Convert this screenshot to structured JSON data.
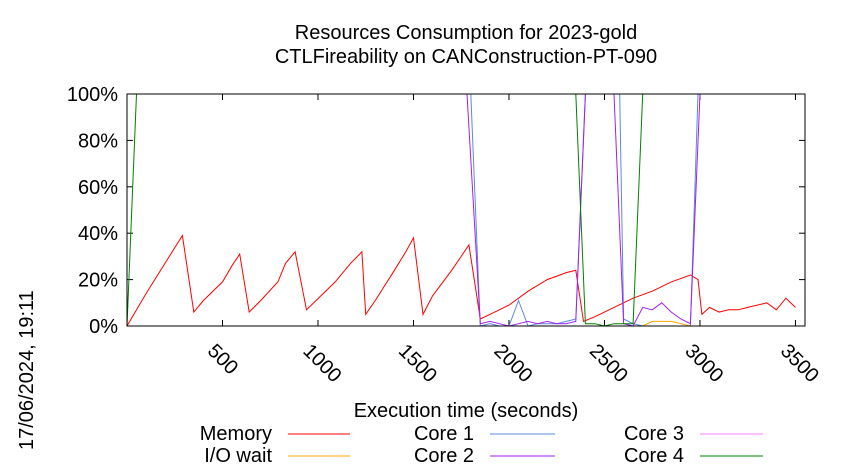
{
  "stamp": "17/06/2024, 19:11",
  "chart_data": {
    "type": "line",
    "title": [
      "Resources Consumption for 2023-gold",
      "CTLFireability on CANConstruction-PT-090"
    ],
    "xlabel": "Execution time (seconds)",
    "ylabel": "",
    "xlim": [
      0,
      3550
    ],
    "ylim": [
      0,
      100
    ],
    "xticks": [
      500,
      1000,
      1500,
      2000,
      2500,
      3000,
      3500
    ],
    "xtick_labels": [
      "500",
      "1000",
      "1500",
      "2000",
      "2500",
      "3000",
      "3500"
    ],
    "yticks": [
      0,
      20,
      40,
      60,
      80,
      100
    ],
    "ytick_labels": [
      "0%",
      "20%",
      "40%",
      "60%",
      "80%",
      "100%"
    ],
    "grid": false,
    "legend_position": "bottom",
    "series": [
      {
        "name": "Memory",
        "color": "#ff0000",
        "points": [
          [
            0,
            0
          ],
          [
            100,
            14
          ],
          [
            290,
            39
          ],
          [
            350,
            6
          ],
          [
            400,
            11
          ],
          [
            500,
            19
          ],
          [
            550,
            26
          ],
          [
            590,
            31
          ],
          [
            640,
            6
          ],
          [
            700,
            11
          ],
          [
            790,
            19
          ],
          [
            830,
            27
          ],
          [
            880,
            32
          ],
          [
            940,
            7
          ],
          [
            990,
            11
          ],
          [
            1090,
            19
          ],
          [
            1170,
            27
          ],
          [
            1230,
            32
          ],
          [
            1250,
            5
          ],
          [
            1300,
            11
          ],
          [
            1400,
            24
          ],
          [
            1460,
            32
          ],
          [
            1500,
            38
          ],
          [
            1550,
            5
          ],
          [
            1600,
            13
          ],
          [
            1700,
            24
          ],
          [
            1750,
            30
          ],
          [
            1790,
            35
          ],
          [
            1850,
            3
          ],
          [
            1900,
            5
          ],
          [
            2000,
            9
          ],
          [
            2100,
            15
          ],
          [
            2200,
            20
          ],
          [
            2300,
            23
          ],
          [
            2350,
            24
          ],
          [
            2390,
            2
          ],
          [
            2450,
            4
          ],
          [
            2550,
            8
          ],
          [
            2650,
            12
          ],
          [
            2750,
            15
          ],
          [
            2850,
            19
          ],
          [
            2950,
            22
          ],
          [
            2990,
            20
          ],
          [
            3010,
            5
          ],
          [
            3050,
            8
          ],
          [
            3100,
            6
          ],
          [
            3150,
            7
          ],
          [
            3200,
            7
          ],
          [
            3250,
            8
          ],
          [
            3300,
            9
          ],
          [
            3350,
            10
          ],
          [
            3400,
            7
          ],
          [
            3450,
            12
          ],
          [
            3500,
            8
          ]
        ]
      },
      {
        "name": "I/O wait",
        "color": "#ffa500",
        "points": [
          [
            0,
            0
          ],
          [
            1800,
            0
          ],
          [
            2400,
            0
          ],
          [
            2700,
            0
          ],
          [
            2750,
            2
          ],
          [
            2800,
            2
          ],
          [
            2850,
            2
          ],
          [
            2900,
            1
          ],
          [
            2950,
            0
          ],
          [
            3000,
            0
          ]
        ]
      },
      {
        "name": "Core 1",
        "color": "#5e87e0",
        "points": [
          [
            1800,
            100
          ],
          [
            1850,
            0
          ],
          [
            1900,
            1
          ],
          [
            1950,
            0
          ],
          [
            2000,
            0
          ],
          [
            2050,
            11
          ],
          [
            2100,
            0
          ],
          [
            2150,
            1
          ],
          [
            2200,
            1
          ],
          [
            2250,
            1
          ],
          [
            2300,
            2
          ],
          [
            2350,
            3
          ],
          [
            2400,
            100
          ],
          [
            2450,
            100
          ],
          [
            2500,
            100
          ],
          [
            2550,
            100
          ],
          [
            2580,
            100
          ],
          [
            2600,
            3
          ],
          [
            2650,
            1
          ],
          [
            2700,
            0
          ],
          [
            2750,
            0
          ],
          [
            2800,
            0
          ],
          [
            2850,
            0
          ],
          [
            2900,
            0
          ],
          [
            2950,
            0
          ],
          [
            2990,
            100
          ],
          [
            3500,
            100
          ]
        ]
      },
      {
        "name": "Core 2",
        "color": "#a020f0",
        "points": [
          [
            1780,
            100
          ],
          [
            1850,
            1
          ],
          [
            1900,
            2
          ],
          [
            1950,
            1
          ],
          [
            2000,
            0
          ],
          [
            2050,
            1
          ],
          [
            2100,
            2
          ],
          [
            2150,
            1
          ],
          [
            2200,
            2
          ],
          [
            2250,
            1
          ],
          [
            2300,
            1
          ],
          [
            2350,
            2
          ],
          [
            2400,
            100
          ],
          [
            2450,
            100
          ],
          [
            2500,
            100
          ],
          [
            2550,
            100
          ],
          [
            2600,
            1
          ],
          [
            2650,
            0
          ],
          [
            2700,
            8
          ],
          [
            2750,
            7
          ],
          [
            2800,
            10
          ],
          [
            2850,
            6
          ],
          [
            2900,
            3
          ],
          [
            2950,
            1
          ],
          [
            3000,
            100
          ],
          [
            3500,
            100
          ]
        ]
      },
      {
        "name": "Core 3",
        "color": "#ff80ff",
        "points": [
          [
            2390,
            100
          ],
          [
            2430,
            100
          ],
          [
            2500,
            100
          ],
          [
            2550,
            100
          ],
          [
            2600,
            100
          ]
        ]
      },
      {
        "name": "Core 4",
        "color": "#008000",
        "points": [
          [
            0,
            0
          ],
          [
            50,
            100
          ],
          [
            100,
            100
          ],
          [
            1800,
            100
          ],
          [
            2300,
            100
          ],
          [
            2350,
            100
          ],
          [
            2400,
            1
          ],
          [
            2450,
            1
          ],
          [
            2500,
            0
          ],
          [
            2550,
            1
          ],
          [
            2600,
            1
          ],
          [
            2650,
            1
          ],
          [
            2700,
            100
          ],
          [
            3500,
            100
          ]
        ]
      }
    ]
  }
}
